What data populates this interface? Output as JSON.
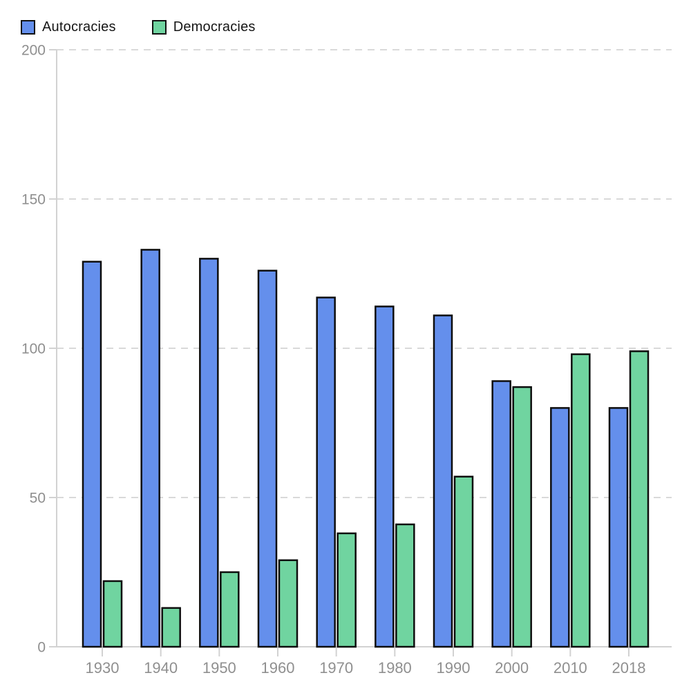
{
  "legend": {
    "items": [
      {
        "label": "Autocracies",
        "color": "#648fec"
      },
      {
        "label": "Democracies",
        "color": "#70d4a0"
      }
    ]
  },
  "chart_data": {
    "type": "bar",
    "title": "",
    "categories": [
      "1930",
      "1940",
      "1950",
      "1960",
      "1970",
      "1980",
      "1990",
      "2000",
      "2010",
      "2018"
    ],
    "series": [
      {
        "name": "Autocracies",
        "color": "#648fec",
        "values": [
          129,
          133,
          130,
          126,
          117,
          114,
          111,
          89,
          80,
          80
        ]
      },
      {
        "name": "Democracies",
        "color": "#70d4a0",
        "values": [
          22,
          13,
          25,
          29,
          38,
          41,
          57,
          87,
          98,
          99
        ]
      }
    ],
    "xlabel": "",
    "ylabel": "",
    "ylim": [
      0,
      200
    ],
    "yticks": [
      0,
      50,
      100,
      150,
      200
    ],
    "grid": "horizontal-dashed",
    "legend_position": "top-left",
    "bar_stroke_color": "#0d0d0d",
    "grid_color": "#d9d9d9",
    "axis_color": "#d2d2d2",
    "tick_label_color": "#8f8f8f"
  }
}
